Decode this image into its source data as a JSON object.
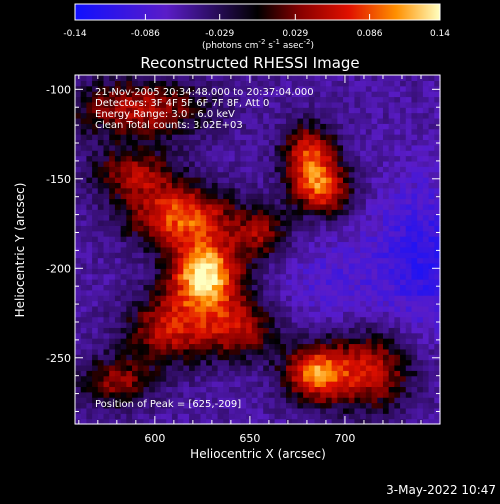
{
  "chart_data": {
    "type": "heatmap",
    "title": "Reconstructed RHESSI Image",
    "xlabel": "Heliocentric X (arcsec)",
    "ylabel": "Heliocentric Y (arcsec)",
    "xlim": [
      558,
      750
    ],
    "ylim": [
      -287,
      -92
    ],
    "x_ticks": [
      600,
      650,
      700
    ],
    "y_ticks": [
      -100,
      -150,
      -200,
      -250
    ],
    "colorbar": {
      "min": -0.14,
      "max": 0.14,
      "ticks": [
        "-0.14",
        "-0.086",
        "-0.029",
        "0.029",
        "0.086",
        "0.14"
      ],
      "label_parts": [
        "(photons cm",
        "-2",
        " s",
        "-1",
        " asec",
        "-2",
        ")"
      ]
    },
    "annotations": [
      "21-Nov-2005 20:34:48.000 to 20:37:04.000",
      "Detectors: 3F 4F 5F 6F 7F 8F, Att 0",
      "Energy Range: 3.0 - 6.0 keV",
      "Clean    Total counts: 3.02E+03"
    ],
    "peak_label": "Position of Peak = [625,-209]",
    "peak_position": [
      625,
      -209
    ],
    "sources": [
      {
        "x": 625,
        "y": -205,
        "peak": 0.14,
        "sx": 13,
        "sy": 14
      },
      {
        "x": 612,
        "y": -172,
        "peak": 0.085,
        "sx": 20,
        "sy": 12
      },
      {
        "x": 606,
        "y": -235,
        "peak": 0.055,
        "sx": 16,
        "sy": 14
      },
      {
        "x": 643,
        "y": -235,
        "peak": 0.045,
        "sx": 14,
        "sy": 12
      },
      {
        "x": 590,
        "y": -112,
        "peak": 0.05,
        "sx": 26,
        "sy": 12
      },
      {
        "x": 588,
        "y": -148,
        "peak": 0.04,
        "sx": 16,
        "sy": 10
      },
      {
        "x": 680,
        "y": -138,
        "peak": 0.075,
        "sx": 10,
        "sy": 12
      },
      {
        "x": 687,
        "y": -158,
        "peak": 0.07,
        "sx": 11,
        "sy": 10
      },
      {
        "x": 683,
        "y": -260,
        "peak": 0.09,
        "sx": 12,
        "sy": 11
      },
      {
        "x": 712,
        "y": -258,
        "peak": 0.055,
        "sx": 16,
        "sy": 16
      },
      {
        "x": 578,
        "y": -265,
        "peak": 0.035,
        "sx": 14,
        "sy": 10
      },
      {
        "x": 655,
        "y": -182,
        "peak": 0.03,
        "sx": 10,
        "sy": 10
      },
      {
        "x": 740,
        "y": -195,
        "peak": -0.06,
        "sx": 20,
        "sy": 30
      },
      {
        "x": 690,
        "y": -210,
        "peak": -0.03,
        "sx": 18,
        "sy": 18
      }
    ],
    "timestamp": "3-May-2022 10:47"
  }
}
